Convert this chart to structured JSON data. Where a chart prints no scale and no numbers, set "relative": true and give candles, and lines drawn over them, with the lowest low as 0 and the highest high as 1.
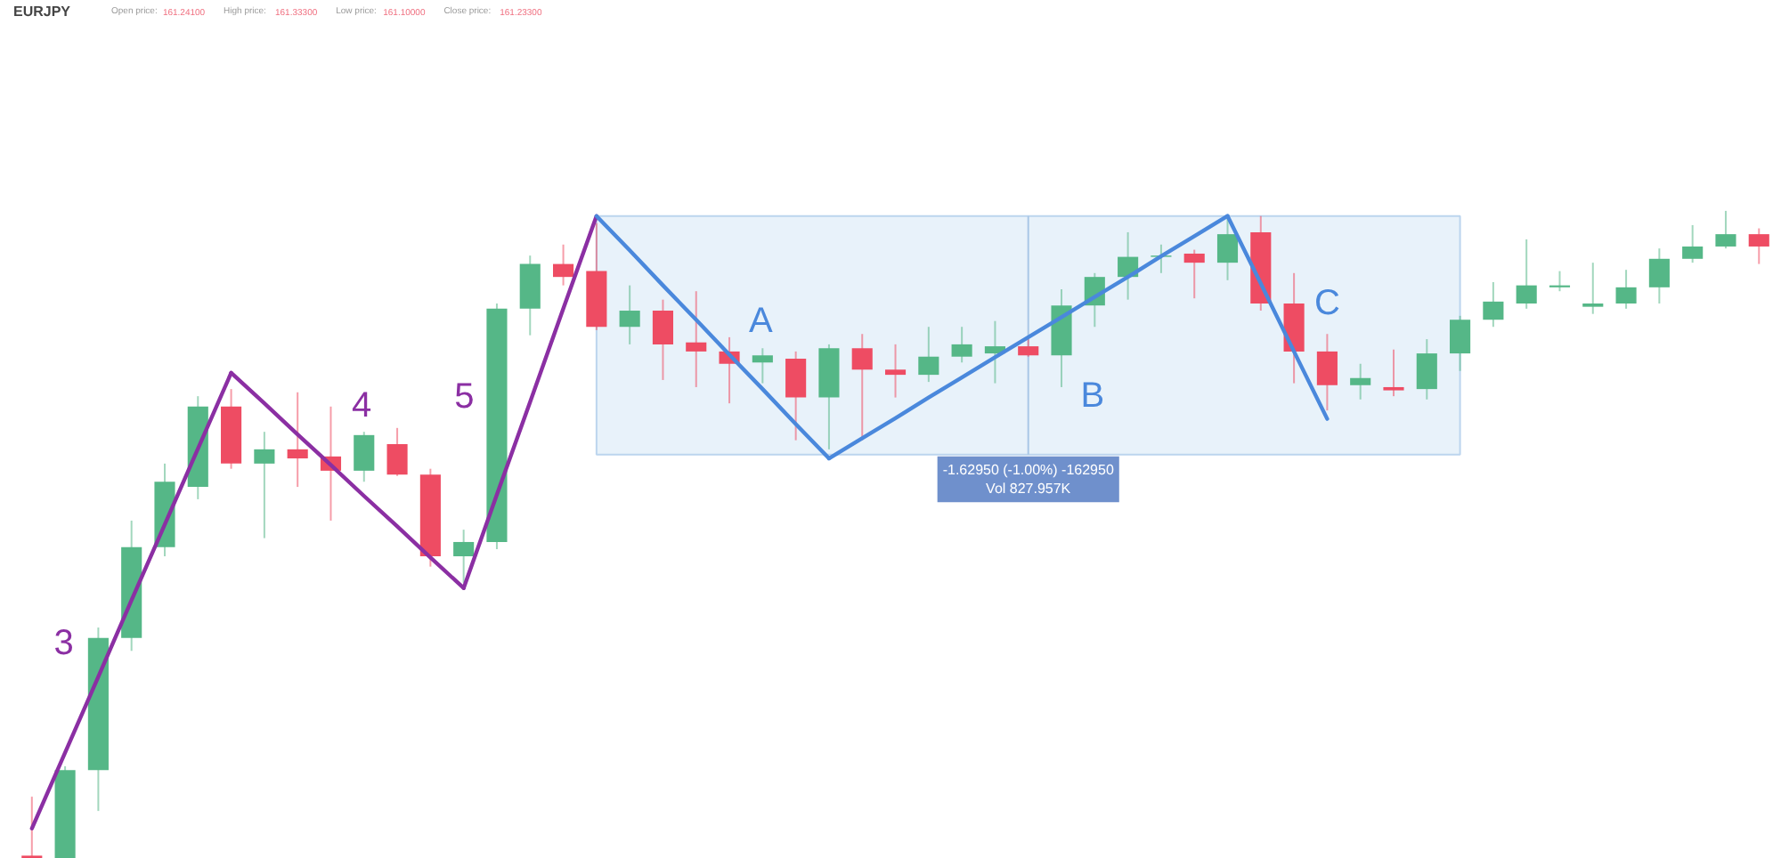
{
  "chart_data": {
    "type": "candlestick",
    "title": "EURJPY",
    "annotations": [
      "Open price: 161.24100",
      "High price: 161.33300",
      "Low price: 161.10000",
      "Close price: 161.23300",
      "-1.62950 (-1.00%) -162950",
      "Vol 827.957K"
    ],
    "relative": true,
    "tick_labels": false,
    "bands": [
      {
        "axis": "y",
        "from": 0.624,
        "to": 0.992,
        "color": "#e6f1fa"
      }
    ],
    "categories": [
      null,
      null,
      null,
      null,
      null,
      null,
      null,
      null,
      null,
      null,
      null,
      null,
      null,
      null,
      null,
      null,
      null,
      null,
      null,
      null,
      null,
      null,
      null,
      null,
      null,
      null,
      null,
      null,
      null,
      null,
      null,
      null,
      null,
      null,
      null,
      null,
      null,
      null,
      null,
      null,
      null,
      null,
      null,
      null,
      null,
      null,
      null,
      null,
      null,
      null,
      null,
      null,
      null
    ],
    "ohlc": [
      [
        0.005,
        0.096,
        0,
        0
      ],
      [
        0,
        0.143,
        0,
        0.137
      ],
      [
        0.137,
        0.357,
        0.074,
        0.341
      ],
      [
        0.341,
        0.522,
        0.321,
        0.481
      ],
      [
        0.481,
        0.61,
        0.467,
        0.582
      ],
      [
        0.574,
        0.714,
        0.555,
        0.698
      ],
      [
        0.698,
        0.725,
        0.602,
        0.61
      ],
      [
        0.61,
        0.659,
        0.495,
        0.632
      ],
      [
        0.632,
        0.72,
        0.574,
        0.618
      ],
      [
        0.621,
        0.698,
        0.522,
        0.599
      ],
      [
        0.599,
        0.659,
        0.582,
        0.654
      ],
      [
        0.64,
        0.665,
        0.591,
        0.593
      ],
      [
        0.593,
        0.602,
        0.451,
        0.467
      ],
      [
        0.467,
        0.508,
        0.426,
        0.489
      ],
      [
        0.489,
        0.857,
        0.478,
        0.849
      ],
      [
        0.849,
        0.931,
        0.808,
        0.918
      ],
      [
        0.918,
        0.948,
        0.885,
        0.898
      ],
      [
        0.907,
        0.981,
        0.816,
        0.821
      ],
      [
        0.821,
        0.885,
        0.794,
        0.846
      ],
      [
        0.846,
        0.863,
        0.739,
        0.794
      ],
      [
        0.797,
        0.876,
        0.728,
        0.783
      ],
      [
        0.783,
        0.805,
        0.703,
        0.764
      ],
      [
        0.766,
        0.788,
        0.734,
        0.777
      ],
      [
        0.772,
        0.783,
        0.646,
        0.712
      ],
      [
        0.712,
        0.794,
        0.632,
        0.788
      ],
      [
        0.788,
        0.81,
        0.646,
        0.755
      ],
      [
        0.755,
        0.794,
        0.712,
        0.747
      ],
      [
        0.747,
        0.821,
        0.736,
        0.775
      ],
      [
        0.775,
        0.821,
        0.766,
        0.794
      ],
      [
        0.78,
        0.83,
        0.734,
        0.791
      ],
      [
        0.791,
        0.802,
        0.775,
        0.777
      ],
      [
        0.777,
        0.879,
        0.728,
        0.854
      ],
      [
        0.854,
        0.904,
        0.821,
        0.898
      ],
      [
        0.898,
        0.967,
        0.863,
        0.929
      ],
      [
        0.929,
        0.948,
        0.904,
        0.931
      ],
      [
        0.934,
        0.94,
        0.865,
        0.92
      ],
      [
        0.92,
        0.989,
        0.893,
        0.964
      ],
      [
        0.967,
        0.992,
        0.846,
        0.857
      ],
      [
        0.857,
        0.904,
        0.734,
        0.783
      ],
      [
        0.783,
        0.81,
        0.692,
        0.731
      ],
      [
        0.731,
        0.764,
        0.709,
        0.742
      ],
      [
        0.728,
        0.786,
        0.714,
        0.723
      ],
      [
        0.725,
        0.802,
        0.709,
        0.78
      ],
      [
        0.78,
        0.838,
        0.753,
        0.832
      ],
      [
        0.832,
        0.89,
        0.821,
        0.86
      ],
      [
        0.857,
        0.956,
        0.849,
        0.885
      ],
      [
        0.882,
        0.907,
        0.876,
        0.885
      ],
      [
        0.852,
        0.92,
        0.841,
        0.857
      ],
      [
        0.857,
        0.909,
        0.849,
        0.882
      ],
      [
        0.882,
        0.942,
        0.857,
        0.926
      ],
      [
        0.926,
        0.978,
        0.92,
        0.945
      ],
      [
        0.945,
        1.0,
        0.942,
        0.964
      ],
      [
        0.964,
        0.973,
        0.918,
        0.945
      ]
    ],
    "colors": [
      "#ee4c63",
      "#55b787",
      "#55b787",
      "#55b787",
      "#55b787",
      "#55b787",
      "#ee4c63",
      "#55b787",
      "#ee4c63",
      "#ee4c63",
      "#55b787",
      "#ee4c63",
      "#ee4c63",
      "#55b787",
      "#55b787",
      "#55b787",
      "#ee4c63",
      "#ee4c63",
      "#55b787",
      "#ee4c63",
      "#ee4c63",
      "#ee4c63",
      "#55b787",
      "#ee4c63",
      "#55b787",
      "#ee4c63",
      "#ee4c63",
      "#55b787",
      "#55b787",
      "#55b787",
      "#ee4c63",
      "#55b787",
      "#55b787",
      "#55b787",
      "#55b787",
      "#ee4c63",
      "#55b787",
      "#ee4c63",
      "#ee4c63",
      "#ee4c63",
      "#55b787",
      "#ee4c63",
      "#55b787",
      "#55b787",
      "#55b787",
      "#55b787",
      "#55b787",
      "#55b787",
      "#55b787",
      "#55b787",
      "#55b787",
      "#55b787",
      "#ee4c63"
    ],
    "series": [
      {
        "type": "line",
        "name": "3",
        "color": "#8b2fa3",
        "values": [
          0.047,
          0.164,
          0.281,
          0.399,
          0.516,
          0.633,
          0.75,
          null,
          null,
          null,
          null,
          null,
          null,
          null,
          null,
          null,
          null,
          null,
          null,
          null,
          null,
          null,
          null,
          null,
          null,
          null,
          null,
          null,
          null,
          null,
          null,
          null,
          null,
          null,
          null,
          null,
          null,
          null,
          null,
          null,
          null,
          null,
          null,
          null,
          null,
          null,
          null,
          null,
          null,
          null,
          null,
          null,
          null
        ]
      },
      {
        "type": "line",
        "name": "4",
        "color": "#8b2fa3",
        "values": [
          null,
          null,
          null,
          null,
          null,
          null,
          0.75,
          0.703,
          0.655,
          0.608,
          0.56,
          0.513,
          0.465,
          0.418,
          null,
          null,
          null,
          null,
          null,
          null,
          null,
          null,
          null,
          null,
          null,
          null,
          null,
          null,
          null,
          null,
          null,
          null,
          null,
          null,
          null,
          null,
          null,
          null,
          null,
          null,
          null,
          null,
          null,
          null,
          null,
          null,
          null,
          null,
          null,
          null,
          null,
          null,
          null
        ]
      },
      {
        "type": "line",
        "name": "5",
        "color": "#8b2fa3",
        "values": [
          null,
          null,
          null,
          null,
          null,
          null,
          null,
          null,
          null,
          null,
          null,
          null,
          null,
          0.418,
          0.562,
          0.705,
          0.849,
          0.992,
          null,
          null,
          null,
          null,
          null,
          null,
          null,
          null,
          null,
          null,
          null,
          null,
          null,
          null,
          null,
          null,
          null,
          null,
          null,
          null,
          null,
          null,
          null,
          null,
          null,
          null,
          null,
          null,
          null,
          null,
          null,
          null,
          null,
          null,
          null
        ]
      },
      {
        "type": "line",
        "name": "A",
        "color": "#4a88dc",
        "values": [
          null,
          null,
          null,
          null,
          null,
          null,
          null,
          null,
          null,
          null,
          null,
          null,
          null,
          null,
          null,
          null,
          null,
          0.992,
          0.939,
          0.885,
          0.832,
          0.778,
          0.725,
          0.671,
          0.618,
          null,
          null,
          null,
          null,
          null,
          null,
          null,
          null,
          null,
          null,
          null,
          null,
          null,
          null,
          null,
          null,
          null,
          null,
          null,
          null,
          null,
          null,
          null,
          null,
          null,
          null,
          null,
          null
        ]
      },
      {
        "type": "line",
        "name": "B",
        "color": "#4a88dc",
        "values": [
          null,
          null,
          null,
          null,
          null,
          null,
          null,
          null,
          null,
          null,
          null,
          null,
          null,
          null,
          null,
          null,
          null,
          null,
          null,
          null,
          null,
          null,
          null,
          null,
          0.618,
          0.649,
          0.68,
          0.712,
          0.743,
          0.774,
          0.805,
          0.836,
          0.867,
          0.898,
          0.93,
          0.961,
          0.992,
          null,
          null,
          null,
          null,
          null,
          null,
          null,
          null,
          null,
          null,
          null,
          null,
          null,
          null,
          null,
          null
        ]
      },
      {
        "type": "line",
        "name": "C",
        "color": "#4a88dc",
        "values": [
          null,
          null,
          null,
          null,
          null,
          null,
          null,
          null,
          null,
          null,
          null,
          null,
          null,
          null,
          null,
          null,
          null,
          null,
          null,
          null,
          null,
          null,
          null,
          null,
          null,
          null,
          null,
          null,
          null,
          null,
          null,
          null,
          null,
          null,
          null,
          null,
          0.992,
          0.888,
          0.783,
          0.679,
          null,
          null,
          null,
          null,
          null,
          null,
          null,
          null,
          null,
          null,
          null,
          null,
          null
        ]
      }
    ]
  }
}
